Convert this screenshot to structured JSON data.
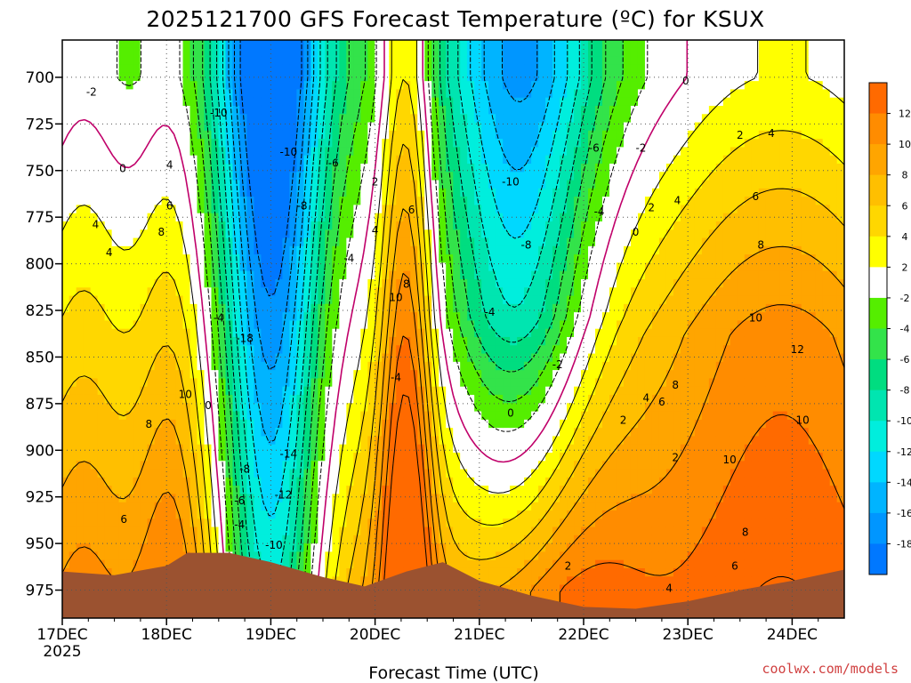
{
  "title": "2025121700 GFS Forecast Temperature (ºC) for KSUX",
  "credit": "coolwx.com/models",
  "chart_data": {
    "type": "heatmap",
    "title": "2025121700 GFS Forecast Temperature (ºC) for KSUX",
    "xlabel": "Forecast Time (UTC)",
    "ylabel": "",
    "x_ticks": [
      "17DEC",
      "18DEC",
      "19DEC",
      "20DEC",
      "21DEC",
      "22DEC",
      "23DEC",
      "24DEC"
    ],
    "x_year_label": "2025",
    "x_range_days": [
      0,
      7.5
    ],
    "y_ticks": [
      700,
      725,
      750,
      775,
      800,
      825,
      850,
      875,
      900,
      925,
      950,
      975
    ],
    "y_range": [
      680,
      990
    ],
    "y_reversed": true,
    "grid": true,
    "colorbar": {
      "ticks": [
        12,
        10,
        8,
        6,
        4,
        2,
        -2,
        -4,
        -6,
        -8,
        -10,
        -12,
        -14,
        -16,
        -18
      ],
      "bands": [
        {
          "from": 12,
          "to": 14,
          "color": "#ff6a00"
        },
        {
          "from": 10,
          "to": 12,
          "color": "#ff8c00"
        },
        {
          "from": 8,
          "to": 10,
          "color": "#ffa500"
        },
        {
          "from": 6,
          "to": 8,
          "color": "#ffbf00"
        },
        {
          "from": 4,
          "to": 6,
          "color": "#ffd700"
        },
        {
          "from": 2,
          "to": 4,
          "color": "#ffff00"
        },
        {
          "from": -2,
          "to": 2,
          "color": "#ffffff"
        },
        {
          "from": -4,
          "to": -2,
          "color": "#55ee00"
        },
        {
          "from": -6,
          "to": -4,
          "color": "#33e34a"
        },
        {
          "from": -8,
          "to": -6,
          "color": "#00dd80"
        },
        {
          "from": -10,
          "to": -8,
          "color": "#00e5b0"
        },
        {
          "from": -12,
          "to": -10,
          "color": "#00eedd"
        },
        {
          "from": -14,
          "to": -12,
          "color": "#00d8ff"
        },
        {
          "from": -16,
          "to": -14,
          "color": "#00b4ff"
        },
        {
          "from": -18,
          "to": -16,
          "color": "#0096ff"
        },
        {
          "from": -20,
          "to": -18,
          "color": "#0078ff"
        }
      ]
    },
    "zero_contour_color": "#c0006a",
    "ground_color": "#9b5230",
    "surface_pressure": [
      {
        "day": 0.0,
        "p": 965
      },
      {
        "day": 0.5,
        "p": 967
      },
      {
        "day": 1.0,
        "p": 962
      },
      {
        "day": 1.2,
        "p": 955
      },
      {
        "day": 1.6,
        "p": 955
      },
      {
        "day": 2.0,
        "p": 960
      },
      {
        "day": 2.5,
        "p": 968
      },
      {
        "day": 2.9,
        "p": 973
      },
      {
        "day": 3.3,
        "p": 965
      },
      {
        "day": 3.65,
        "p": 960
      },
      {
        "day": 4.0,
        "p": 970
      },
      {
        "day": 4.5,
        "p": 978
      },
      {
        "day": 5.0,
        "p": 984
      },
      {
        "day": 5.5,
        "p": 985
      },
      {
        "day": 6.0,
        "p": 981
      },
      {
        "day": 6.5,
        "p": 975
      },
      {
        "day": 7.0,
        "p": 970
      },
      {
        "day": 7.5,
        "p": 964
      }
    ],
    "contour_labels": [
      {
        "day": 0.28,
        "p": 708,
        "text": "-2"
      },
      {
        "day": 0.58,
        "p": 749,
        "text": "0"
      },
      {
        "day": 1.03,
        "p": 747,
        "text": "4"
      },
      {
        "day": 1.03,
        "p": 769,
        "text": "6"
      },
      {
        "day": 0.95,
        "p": 783,
        "text": "8"
      },
      {
        "day": 0.32,
        "p": 779,
        "text": "4"
      },
      {
        "day": 0.45,
        "p": 794,
        "text": "4"
      },
      {
        "day": 1.18,
        "p": 870,
        "text": "10"
      },
      {
        "day": 1.4,
        "p": 876,
        "text": "0"
      },
      {
        "day": 0.83,
        "p": 886,
        "text": "8"
      },
      {
        "day": 0.59,
        "p": 937,
        "text": "6"
      },
      {
        "day": 1.5,
        "p": 719,
        "text": "-10"
      },
      {
        "day": 1.5,
        "p": 829,
        "text": "-4"
      },
      {
        "day": 1.75,
        "p": 840,
        "text": "-18"
      },
      {
        "day": 2.17,
        "p": 740,
        "text": "-10"
      },
      {
        "day": 2.3,
        "p": 769,
        "text": "-8"
      },
      {
        "day": 2.6,
        "p": 746,
        "text": "-6"
      },
      {
        "day": 2.75,
        "p": 797,
        "text": "-4"
      },
      {
        "day": 3.2,
        "p": 861,
        "text": "-4"
      },
      {
        "day": 2.17,
        "p": 902,
        "text": "-14"
      },
      {
        "day": 2.12,
        "p": 924,
        "text": "-12"
      },
      {
        "day": 2.03,
        "p": 951,
        "text": "-10"
      },
      {
        "day": 1.75,
        "p": 910,
        "text": "-8"
      },
      {
        "day": 1.7,
        "p": 927,
        "text": "-6"
      },
      {
        "day": 1.7,
        "p": 940,
        "text": "-4"
      },
      {
        "day": 3.0,
        "p": 756,
        "text": "2"
      },
      {
        "day": 3.0,
        "p": 782,
        "text": "4"
      },
      {
        "day": 3.35,
        "p": 771,
        "text": "6"
      },
      {
        "day": 3.3,
        "p": 811,
        "text": "8"
      },
      {
        "day": 3.2,
        "p": 818,
        "text": "10"
      },
      {
        "day": 4.1,
        "p": 826,
        "text": "-4"
      },
      {
        "day": 4.45,
        "p": 790,
        "text": "-8"
      },
      {
        "day": 4.3,
        "p": 756,
        "text": "-10"
      },
      {
        "day": 5.1,
        "p": 738,
        "text": "-6"
      },
      {
        "day": 5.15,
        "p": 772,
        "text": "-4"
      },
      {
        "day": 5.55,
        "p": 738,
        "text": "-2"
      },
      {
        "day": 5.5,
        "p": 783,
        "text": "0"
      },
      {
        "day": 5.65,
        "p": 770,
        "text": "2"
      },
      {
        "day": 5.9,
        "p": 766,
        "text": "4"
      },
      {
        "day": 4.75,
        "p": 854,
        "text": "-2"
      },
      {
        "day": 4.3,
        "p": 880,
        "text": "0"
      },
      {
        "day": 5.38,
        "p": 884,
        "text": "2"
      },
      {
        "day": 5.6,
        "p": 872,
        "text": "4"
      },
      {
        "day": 5.75,
        "p": 874,
        "text": "6"
      },
      {
        "day": 5.88,
        "p": 865,
        "text": "8"
      },
      {
        "day": 5.88,
        "p": 904,
        "text": "2"
      },
      {
        "day": 4.85,
        "p": 962,
        "text": "2"
      },
      {
        "day": 5.82,
        "p": 974,
        "text": "4"
      },
      {
        "day": 5.98,
        "p": 702,
        "text": "0"
      },
      {
        "day": 6.5,
        "p": 731,
        "text": "2"
      },
      {
        "day": 6.8,
        "p": 730,
        "text": "4"
      },
      {
        "day": 6.65,
        "p": 764,
        "text": "6"
      },
      {
        "day": 6.7,
        "p": 790,
        "text": "8"
      },
      {
        "day": 6.65,
        "p": 829,
        "text": "10"
      },
      {
        "day": 7.05,
        "p": 846,
        "text": "12"
      },
      {
        "day": 7.1,
        "p": 884,
        "text": "10"
      },
      {
        "day": 6.4,
        "p": 905,
        "text": "10"
      },
      {
        "day": 6.55,
        "p": 944,
        "text": "8"
      },
      {
        "day": 6.45,
        "p": 962,
        "text": "6"
      }
    ]
  }
}
